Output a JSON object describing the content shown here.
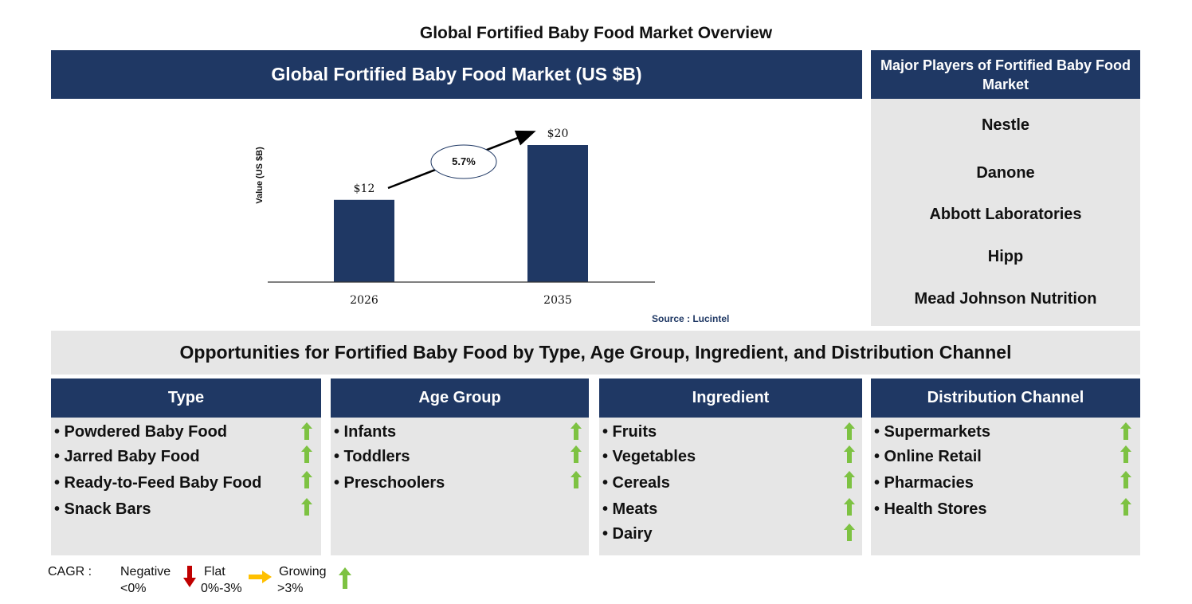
{
  "title": "Global Fortified Baby Food Market Overview",
  "chart_header": "Global Fortified Baby Food Market (US $B)",
  "players_header": "Major Players of Fortified Baby Food Market",
  "players": [
    "Nestle",
    "Danone",
    "Abbott Laboratories",
    "Hipp",
    "Mead Johnson Nutrition"
  ],
  "chart_data": {
    "type": "bar",
    "categories": [
      "2026",
      "2035"
    ],
    "values": [
      12,
      20
    ],
    "data_labels": [
      "$12",
      "$20"
    ],
    "ylabel": "Value (US $B)",
    "cagr_label": "5.7%",
    "bar_color": "#1f3864"
  },
  "source": "Source : Lucintel",
  "opportunities_title": "Opportunities for Fortified Baby Food by Type, Age Group, Ingredient, and Distribution Channel",
  "segments": [
    {
      "header": "Type",
      "items": [
        "• Powdered Baby Food",
        "• Jarred Baby Food",
        "• Ready-to-Feed Baby Food",
        "• Snack Bars"
      ]
    },
    {
      "header": "Age Group",
      "items": [
        "• Infants",
        "• Toddlers",
        "• Preschoolers"
      ]
    },
    {
      "header": "Ingredient",
      "items": [
        "• Fruits",
        "• Vegetables",
        "• Cereals",
        "• Meats",
        "• Dairy"
      ]
    },
    {
      "header": "Distribution Channel",
      "items": [
        "• Supermarkets",
        "• Online Retail",
        "• Pharmacies",
        "• Health Stores"
      ]
    }
  ],
  "legend": {
    "cagr_label": "CAGR :",
    "negative_label": "Negative",
    "negative_range": "<0%",
    "flat_label": "Flat",
    "flat_range": "0%-3%",
    "growing_label": "Growing",
    "growing_range": ">3%"
  },
  "colors": {
    "navy": "#1f3864",
    "grey": "#e6e6e6",
    "up": "#7dc242",
    "down": "#c00000",
    "flat": "#ffc000"
  }
}
